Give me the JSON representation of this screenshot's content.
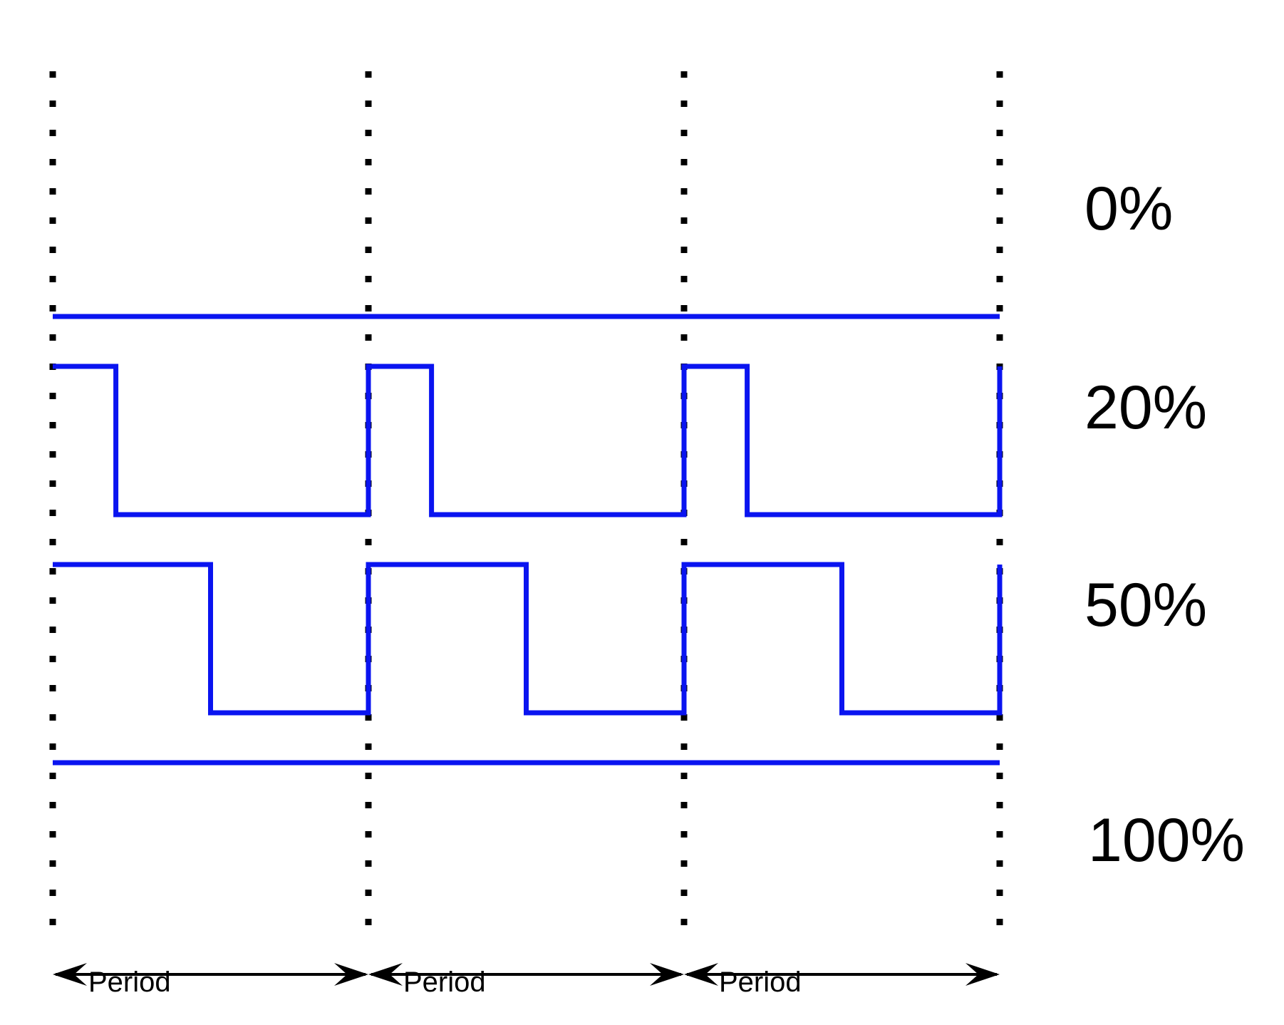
{
  "diagram": {
    "colors": {
      "wave": "#0a14f0",
      "grid": "#000000",
      "arrow": "#000000",
      "text": "#000000",
      "background": "#ffffff"
    },
    "periods": 3,
    "period_label": "Period",
    "rows": [
      {
        "label": "0%",
        "duty": 0.0
      },
      {
        "label": "20%",
        "duty": 0.2
      },
      {
        "label": "50%",
        "duty": 0.5
      },
      {
        "label": "100%",
        "duty": 1.0
      }
    ]
  }
}
